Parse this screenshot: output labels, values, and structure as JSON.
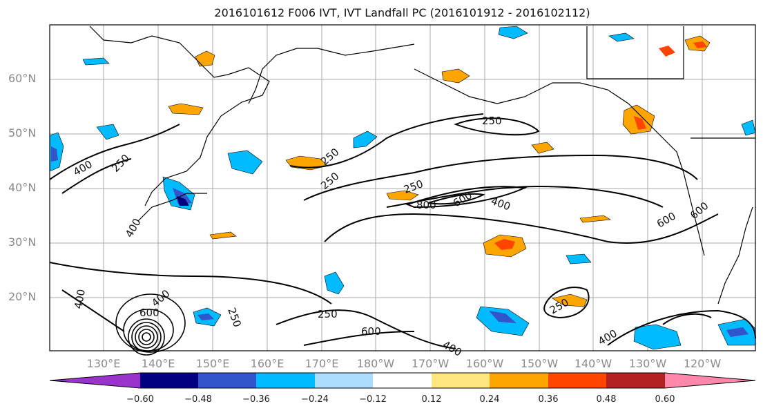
{
  "title": "2016101612 F006 IVT, IVT Landfall PC (2016101912 - 2016102112)",
  "latitude_labels": [
    {
      "text": "60°N",
      "lat": 60
    },
    {
      "text": "50°N",
      "lat": 50
    },
    {
      "text": "40°N",
      "lat": 40
    },
    {
      "text": "30°N",
      "lat": 30
    },
    {
      "text": "20°N",
      "lat": 20
    }
  ],
  "longitude_labels": [
    {
      "text": "130°E",
      "lon": 130
    },
    {
      "text": "140°E",
      "lon": 140
    },
    {
      "text": "150°E",
      "lon": 150
    },
    {
      "text": "160°E",
      "lon": 160
    },
    {
      "text": "170°E",
      "lon": 170
    },
    {
      "text": "180°W",
      "lon": 180
    },
    {
      "text": "170°W",
      "lon": 190
    },
    {
      "text": "160°W",
      "lon": 200
    },
    {
      "text": "150°W",
      "lon": 210
    },
    {
      "text": "140°W",
      "lon": 220
    },
    {
      "text": "130°W",
      "lon": 230
    },
    {
      "text": "120°W",
      "lon": 240
    }
  ],
  "contour_labels": [
    "250",
    "250",
    "250",
    "250",
    "250",
    "250",
    "250",
    "250",
    "400",
    "400",
    "400",
    "400",
    "400",
    "400",
    "400",
    "600",
    "600",
    "600",
    "600",
    "600",
    "800"
  ],
  "colorbar": {
    "ticks": [
      "−0.60",
      "−0.48",
      "−0.36",
      "−0.24",
      "−0.12",
      "0.12",
      "0.24",
      "0.36",
      "0.48",
      "0.60"
    ],
    "colors": [
      "#9933cc",
      "#000080",
      "#3355cc",
      "#00bbff",
      "#aaddff",
      "#ffffff",
      "#ffe680",
      "#ffa500",
      "#ff4500",
      "#b22222",
      "#ff88aa"
    ]
  }
}
